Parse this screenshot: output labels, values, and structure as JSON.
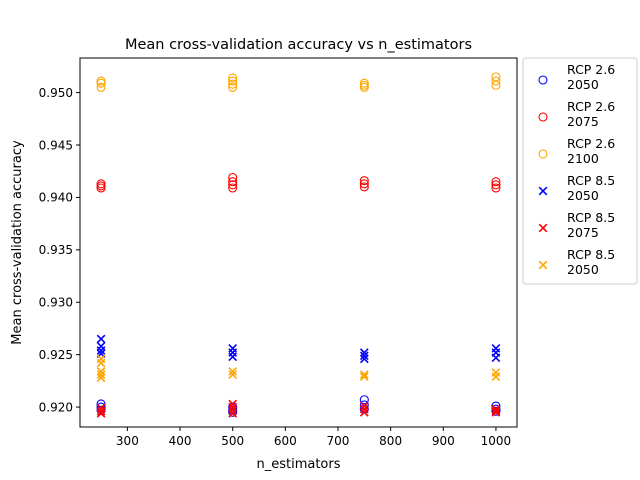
{
  "chart_data": {
    "type": "scatter",
    "title": "Mean cross-validation accuracy vs n_estimators",
    "xlabel": "n_estimators",
    "ylabel": "Mean cross-validation accuracy",
    "xlim": [
      210,
      1040
    ],
    "ylim": [
      0.9181,
      0.9533
    ],
    "xticks": [
      300,
      400,
      500,
      600,
      700,
      800,
      900,
      1000
    ],
    "yticks": [
      0.92,
      0.925,
      0.93,
      0.935,
      0.94,
      0.945,
      0.95
    ],
    "ytick_labels": [
      "0.920",
      "0.925",
      "0.930",
      "0.935",
      "0.940",
      "0.945",
      "0.950"
    ],
    "grid": false,
    "legend_position": "outside-right",
    "series": [
      {
        "name": "RCP 2.6\n2050",
        "marker": "circle",
        "color": "#0000ff",
        "points": [
          [
            250,
            0.9203
          ],
          [
            250,
            0.92
          ],
          [
            250,
            0.9197
          ],
          [
            500,
            0.92
          ],
          [
            500,
            0.9197
          ],
          [
            500,
            0.9195
          ],
          [
            750,
            0.9207
          ],
          [
            750,
            0.9202
          ],
          [
            750,
            0.9198
          ],
          [
            1000,
            0.9201
          ],
          [
            1000,
            0.9198
          ],
          [
            1000,
            0.9196
          ]
        ]
      },
      {
        "name": "RCP 2.6\n2075",
        "marker": "circle",
        "color": "#ff0000",
        "points": [
          [
            250,
            0.9413
          ],
          [
            250,
            0.9411
          ],
          [
            250,
            0.9409
          ],
          [
            500,
            0.9419
          ],
          [
            500,
            0.9415
          ],
          [
            500,
            0.9412
          ],
          [
            500,
            0.9409
          ],
          [
            750,
            0.9416
          ],
          [
            750,
            0.9413
          ],
          [
            750,
            0.941
          ],
          [
            1000,
            0.9415
          ],
          [
            1000,
            0.9412
          ],
          [
            1000,
            0.9409
          ]
        ]
      },
      {
        "name": "RCP 2.6\n2100",
        "marker": "circle",
        "color": "#ffa500",
        "points": [
          [
            250,
            0.9511
          ],
          [
            250,
            0.9509
          ],
          [
            250,
            0.9505
          ],
          [
            500,
            0.9514
          ],
          [
            500,
            0.9511
          ],
          [
            500,
            0.9508
          ],
          [
            500,
            0.9505
          ],
          [
            750,
            0.9509
          ],
          [
            750,
            0.9507
          ],
          [
            750,
            0.9505
          ],
          [
            1000,
            0.9515
          ],
          [
            1000,
            0.9511
          ],
          [
            1000,
            0.9507
          ]
        ]
      },
      {
        "name": "RCP 8.5\n2050",
        "marker": "x",
        "color": "#0000ff",
        "points": [
          [
            250,
            0.9265
          ],
          [
            250,
            0.9258
          ],
          [
            250,
            0.9254
          ],
          [
            250,
            0.9251
          ],
          [
            500,
            0.9256
          ],
          [
            500,
            0.9252
          ],
          [
            500,
            0.9248
          ],
          [
            750,
            0.9252
          ],
          [
            750,
            0.9249
          ],
          [
            750,
            0.9246
          ],
          [
            1000,
            0.9256
          ],
          [
            1000,
            0.9252
          ],
          [
            1000,
            0.9247
          ]
        ]
      },
      {
        "name": "RCP 8.5\n2075",
        "marker": "x",
        "color": "#ff0000",
        "points": [
          [
            250,
            0.9199
          ],
          [
            250,
            0.9196
          ],
          [
            250,
            0.9194
          ],
          [
            500,
            0.9203
          ],
          [
            500,
            0.92
          ],
          [
            500,
            0.9197
          ],
          [
            500,
            0.9194
          ],
          [
            750,
            0.9201
          ],
          [
            750,
            0.9198
          ],
          [
            750,
            0.9195
          ],
          [
            1000,
            0.9198
          ],
          [
            1000,
            0.9196
          ],
          [
            1000,
            0.9195
          ]
        ]
      },
      {
        "name": "RCP 8.5\n2050",
        "marker": "x",
        "color": "#ffa500",
        "points": [
          [
            250,
            0.9246
          ],
          [
            250,
            0.9242
          ],
          [
            250,
            0.9234
          ],
          [
            250,
            0.9231
          ],
          [
            250,
            0.9228
          ],
          [
            500,
            0.9234
          ],
          [
            500,
            0.9231
          ],
          [
            750,
            0.9231
          ],
          [
            750,
            0.9229
          ],
          [
            1000,
            0.9233
          ],
          [
            1000,
            0.9229
          ]
        ]
      }
    ]
  }
}
